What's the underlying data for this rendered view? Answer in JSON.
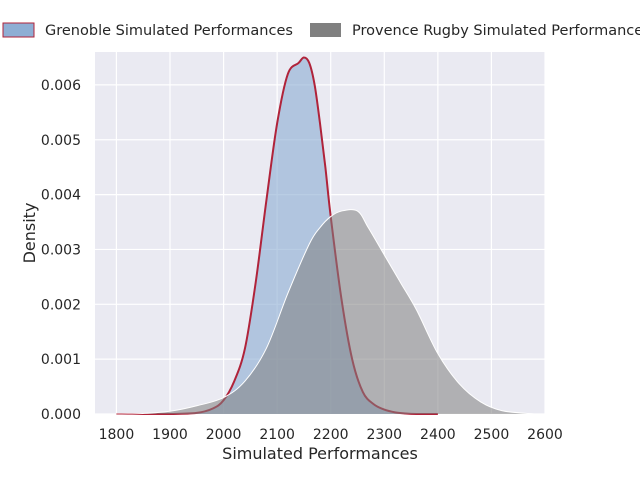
{
  "chart_data": {
    "type": "area",
    "title": "",
    "xlabel": "Simulated Performances",
    "ylabel": "Density",
    "xlim": [
      1760,
      2600
    ],
    "ylim": [
      0,
      0.0066
    ],
    "xticks": [
      1800,
      1900,
      2000,
      2100,
      2200,
      2300,
      2400,
      2500,
      2600
    ],
    "yticks": [
      "0.000",
      "0.001",
      "0.002",
      "0.003",
      "0.004",
      "0.005",
      "0.006"
    ],
    "ytick_values": [
      0,
      0.001,
      0.002,
      0.003,
      0.004,
      0.005,
      0.006
    ],
    "grid": true,
    "legend_position": "top",
    "colors": {
      "background": "#eaeaf2",
      "grid": "#ffffff",
      "grenoble_fill": "#8eaed4",
      "grenoble_line": "#b0233a",
      "provence_fill": "#808080",
      "provence_line": "#ffffff"
    },
    "series": [
      {
        "name": "Grenoble Simulated Performances",
        "x": [
          1800,
          1900,
          1950,
          1980,
          2000,
          2020,
          2040,
          2060,
          2080,
          2100,
          2120,
          2140,
          2150,
          2160,
          2170,
          2180,
          2190,
          2200,
          2220,
          2240,
          2260,
          2280,
          2300,
          2320,
          2340,
          2360,
          2380,
          2400
        ],
        "y": [
          0,
          0,
          2e-05,
          0.0001,
          0.00025,
          0.0006,
          0.0012,
          0.0024,
          0.0039,
          0.0053,
          0.0062,
          0.0064,
          0.0065,
          0.0064,
          0.006,
          0.0053,
          0.0045,
          0.0036,
          0.0021,
          0.001,
          0.0004,
          0.00018,
          8e-05,
          3e-05,
          1e-05,
          0,
          0,
          0
        ]
      },
      {
        "name": "Provence Rugby Simulated Performances",
        "x": [
          1800,
          1850,
          1900,
          1950,
          2000,
          2040,
          2080,
          2120,
          2160,
          2180,
          2200,
          2220,
          2250,
          2270,
          2300,
          2330,
          2360,
          2400,
          2440,
          2480,
          2520,
          2580
        ],
        "y": [
          0,
          1e-05,
          5e-05,
          0.00015,
          0.0003,
          0.0006,
          0.0012,
          0.0022,
          0.0031,
          0.0034,
          0.0036,
          0.0037,
          0.0037,
          0.0034,
          0.0029,
          0.0024,
          0.0019,
          0.0011,
          0.00055,
          0.00022,
          6e-05,
          0
        ]
      }
    ]
  }
}
